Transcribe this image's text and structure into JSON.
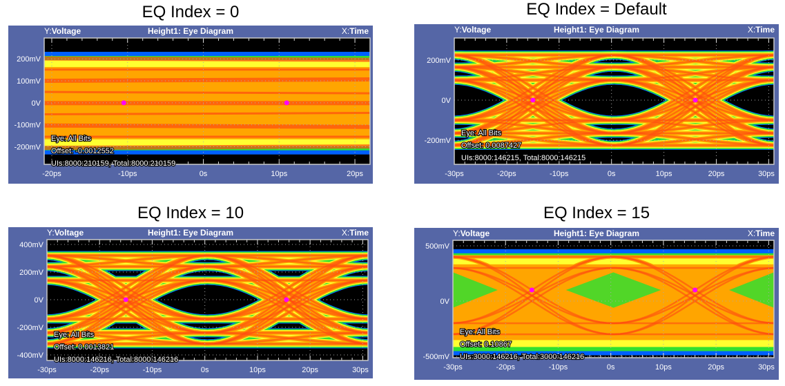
{
  "header": {
    "y_prefix": "Y:",
    "y_label": "Voltage",
    "title": "Height1: Eye Diagram",
    "x_prefix": "X:",
    "x_label": "Time"
  },
  "colors": {
    "frame": "#5566a6",
    "background": "#000000",
    "core": "#ff4a10",
    "mid": "#ffa500",
    "edge": "#ffff30",
    "fringe": "#30e030",
    "outer": "#0060ff",
    "marker": "#ff00ff"
  },
  "chart_data": [
    {
      "type": "heatmap",
      "subtype": "eye-diagram",
      "title": "EQ Index = 0",
      "xlabel": "Time",
      "ylabel": "Voltage",
      "xlim": [
        -21,
        22
      ],
      "ylim": [
        -280,
        295
      ],
      "x_ticks": [
        {
          "v": -20,
          "label": "-20ps"
        },
        {
          "v": -10,
          "label": "-10ps"
        },
        {
          "v": 0,
          "label": "0s"
        },
        {
          "v": 10,
          "label": "10ps"
        },
        {
          "v": 20,
          "label": "20ps"
        }
      ],
      "y_ticks": [
        {
          "v": 200,
          "label": "200mV"
        },
        {
          "v": 100,
          "label": "100mV"
        },
        {
          "v": 0,
          "label": "0V"
        },
        {
          "v": -100,
          "label": "-100mV"
        },
        {
          "v": -200,
          "label": "-200mV"
        }
      ],
      "eye_state": "closed",
      "band_mV": [
        -235,
        232
      ],
      "markers": [
        {
          "x": -10.5,
          "y": 0
        },
        {
          "x": 11,
          "y": 0
        }
      ],
      "annotations": [
        "Eye: All Bits",
        "Offset: -0.0012552",
        "UIs:8000:210159, Total:8000:210159"
      ]
    },
    {
      "type": "heatmap",
      "subtype": "eye-diagram",
      "title": "EQ Index = Default",
      "xlabel": "Time",
      "ylabel": "Voltage",
      "xlim": [
        -30,
        31
      ],
      "ylim": [
        -320,
        310
      ],
      "x_ticks": [
        {
          "v": -30,
          "label": "-30ps"
        },
        {
          "v": -20,
          "label": "-20ps"
        },
        {
          "v": -10,
          "label": "-10ps"
        },
        {
          "v": 0,
          "label": "0s"
        },
        {
          "v": 10,
          "label": "10ps"
        },
        {
          "v": 20,
          "label": "20ps"
        },
        {
          "v": 30,
          "label": "30ps"
        }
      ],
      "y_ticks": [
        {
          "v": 200,
          "label": "200mV"
        },
        {
          "v": 0,
          "label": "0V"
        },
        {
          "v": -200,
          "label": "-200mV"
        }
      ],
      "eye_state": "open",
      "levels_mV": [
        -225,
        -165,
        -100,
        100,
        165,
        225
      ],
      "ui_ps": 31,
      "crossings_ps": [
        -46,
        -15,
        16,
        47
      ],
      "markers": [
        {
          "x": -15,
          "y": 0
        },
        {
          "x": 16,
          "y": 0
        }
      ],
      "annotations": [
        "Eye: All Bits",
        "Offset: 0.0087427",
        "UIs:8000:146215, Total:8000:146215"
      ]
    },
    {
      "type": "heatmap",
      "subtype": "eye-diagram",
      "title": "EQ Index = 10",
      "xlabel": "Time",
      "ylabel": "Voltage",
      "xlim": [
        -30,
        31
      ],
      "ylim": [
        -440,
        435
      ],
      "x_ticks": [
        {
          "v": -30,
          "label": "-30ps"
        },
        {
          "v": -20,
          "label": "-20ps"
        },
        {
          "v": -10,
          "label": "-10ps"
        },
        {
          "v": 0,
          "label": "0s"
        },
        {
          "v": 10,
          "label": "10ps"
        },
        {
          "v": 20,
          "label": "20ps"
        },
        {
          "v": 30,
          "label": "30ps"
        }
      ],
      "y_ticks": [
        {
          "v": 400,
          "label": "400mV"
        },
        {
          "v": 200,
          "label": "200mV"
        },
        {
          "v": 0,
          "label": "0V"
        },
        {
          "v": -200,
          "label": "-200mV"
        },
        {
          "v": -400,
          "label": "-400mV"
        }
      ],
      "eye_state": "open",
      "levels_mV": [
        -320,
        -240,
        -140,
        140,
        240,
        320
      ],
      "ui_ps": 31,
      "crossings_ps": [
        -46,
        -15,
        16,
        47
      ],
      "markers": [
        {
          "x": -15,
          "y": 0
        },
        {
          "x": 15.5,
          "y": 0
        }
      ],
      "annotations": [
        "Eye: All Bits",
        "Offset: 0.0013821",
        "UIs:8000:146216, Total:8000:146216"
      ]
    },
    {
      "type": "heatmap",
      "subtype": "eye-diagram",
      "title": "EQ Index = 15",
      "xlabel": "Time",
      "ylabel": "Voltage",
      "xlim": [
        -30,
        31
      ],
      "ylim": [
        -512,
        550
      ],
      "x_ticks": [
        {
          "v": -30,
          "label": "-30ps"
        },
        {
          "v": -20,
          "label": "-20ps"
        },
        {
          "v": -10,
          "label": "-10ps"
        },
        {
          "v": 0,
          "label": "0s"
        },
        {
          "v": 10,
          "label": "10ps"
        },
        {
          "v": 20,
          "label": "20ps"
        },
        {
          "v": 30,
          "label": "30ps"
        }
      ],
      "y_ticks": [
        {
          "v": 500,
          "label": "500mV"
        },
        {
          "v": 0,
          "label": "0V"
        },
        {
          "v": -500,
          "label": "-500mV"
        }
      ],
      "eye_state": "mostly-closed",
      "band_mV": [
        -490,
        470
      ],
      "levels_mV": [
        -300,
        -200,
        300,
        400
      ],
      "ui_ps": 31,
      "crossings_ps": [
        -46,
        -15,
        16,
        47
      ],
      "markers": [
        {
          "x": -15,
          "y": 100
        },
        {
          "x": 16,
          "y": 100
        }
      ],
      "annotations": [
        "Eye: All Bits",
        "Offset: 0.10867",
        "UIs:3000:146216, Total:3000:146216"
      ]
    }
  ]
}
